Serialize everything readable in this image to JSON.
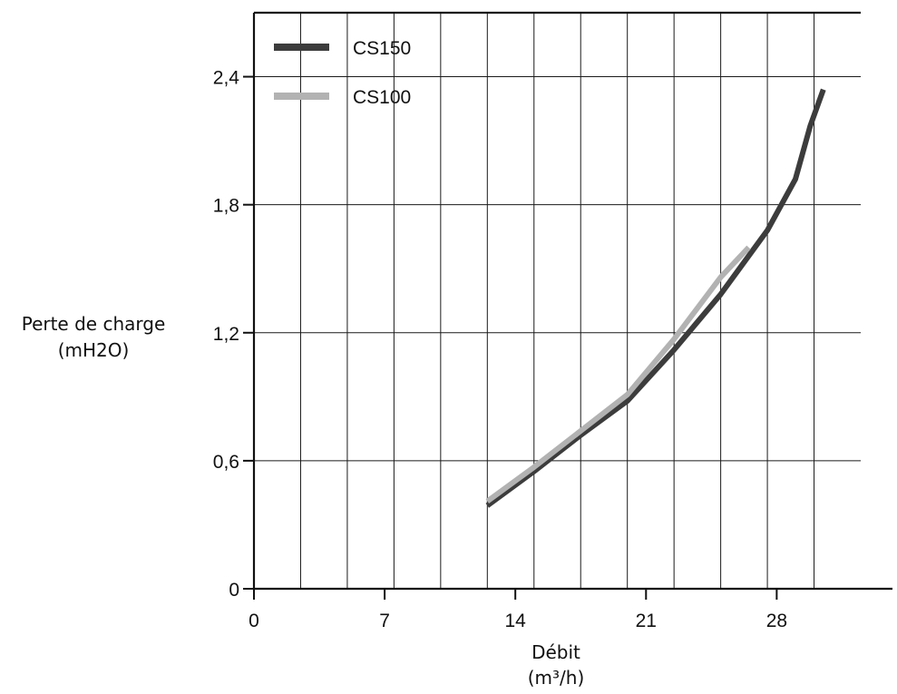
{
  "chart_data": {
    "type": "line",
    "title": "",
    "xlabel": [
      "Débit",
      "(m³/h)"
    ],
    "ylabel": [
      "Perte de charge",
      "(mH2O)"
    ],
    "xlim": [
      0,
      32.5
    ],
    "ylim": [
      0,
      2.7
    ],
    "x_ticks": [
      0,
      7,
      14,
      21,
      28
    ],
    "x_tick_labels": [
      "0",
      "7",
      "14",
      "21",
      "28"
    ],
    "x_grid_step": 2.5,
    "y_ticks": [
      0,
      0.6,
      1.2,
      1.8,
      2.4
    ],
    "y_tick_labels": [
      "0",
      "0,6",
      "1,2",
      "1,8",
      "2,4"
    ],
    "grid": true,
    "legend_position": "top-left",
    "series": [
      {
        "name": "CS150",
        "color": "#3c3c3c",
        "x": [
          12.5,
          15,
          17.5,
          20,
          22.5,
          25,
          26,
          27.5,
          29,
          29.8,
          30.5
        ],
        "y": [
          0.39,
          0.55,
          0.72,
          0.88,
          1.12,
          1.38,
          1.5,
          1.68,
          1.92,
          2.17,
          2.34
        ]
      },
      {
        "name": "CS100",
        "color": "#b2b2b2",
        "x": [
          12.5,
          15,
          17.5,
          20,
          22.5,
          25,
          26.5
        ],
        "y": [
          0.41,
          0.57,
          0.74,
          0.91,
          1.17,
          1.46,
          1.6
        ]
      }
    ]
  }
}
